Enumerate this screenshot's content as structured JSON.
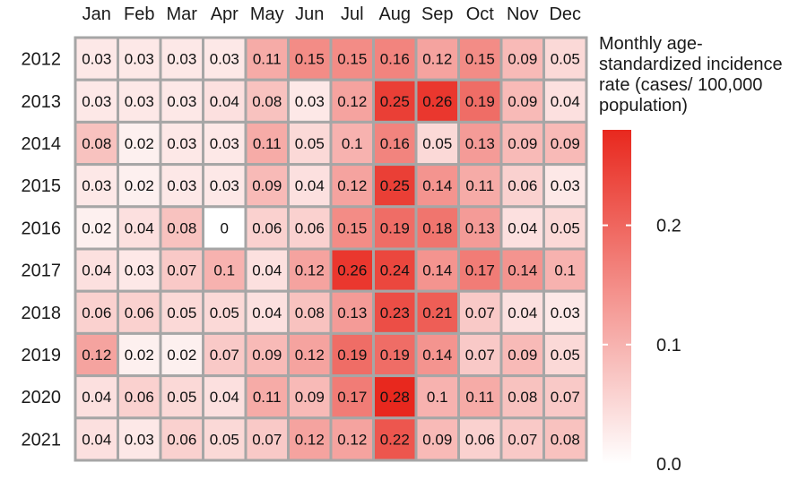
{
  "chart_data": {
    "type": "heatmap",
    "columns": [
      "Jan",
      "Feb",
      "Mar",
      "Apr",
      "May",
      "Jun",
      "Jul",
      "Aug",
      "Sep",
      "Oct",
      "Nov",
      "Dec"
    ],
    "rows": [
      "2012",
      "2013",
      "2014",
      "2015",
      "2016",
      "2017",
      "2018",
      "2019",
      "2020",
      "2021"
    ],
    "values": [
      [
        0.03,
        0.03,
        0.03,
        0.03,
        0.11,
        0.15,
        0.15,
        0.16,
        0.12,
        0.15,
        0.09,
        0.05
      ],
      [
        0.03,
        0.03,
        0.03,
        0.04,
        0.08,
        0.03,
        0.12,
        0.25,
        0.26,
        0.19,
        0.09,
        0.04
      ],
      [
        0.08,
        0.02,
        0.03,
        0.03,
        0.11,
        0.05,
        0.1,
        0.16,
        0.05,
        0.13,
        0.09,
        0.09
      ],
      [
        0.03,
        0.02,
        0.03,
        0.03,
        0.09,
        0.04,
        0.12,
        0.25,
        0.14,
        0.11,
        0.06,
        0.03
      ],
      [
        0.02,
        0.04,
        0.08,
        0,
        0.06,
        0.06,
        0.15,
        0.19,
        0.18,
        0.13,
        0.04,
        0.05
      ],
      [
        0.04,
        0.03,
        0.07,
        0.1,
        0.04,
        0.12,
        0.26,
        0.24,
        0.14,
        0.17,
        0.14,
        0.1
      ],
      [
        0.06,
        0.06,
        0.05,
        0.05,
        0.04,
        0.08,
        0.13,
        0.23,
        0.21,
        0.07,
        0.04,
        0.03
      ],
      [
        0.12,
        0.02,
        0.02,
        0.07,
        0.09,
        0.12,
        0.19,
        0.19,
        0.14,
        0.07,
        0.09,
        0.05
      ],
      [
        0.04,
        0.06,
        0.05,
        0.04,
        0.11,
        0.09,
        0.17,
        0.28,
        0.1,
        0.11,
        0.08,
        0.07
      ],
      [
        0.04,
        0.03,
        0.06,
        0.05,
        0.07,
        0.12,
        0.12,
        0.22,
        0.09,
        0.06,
        0.07,
        0.08
      ]
    ],
    "color_scale": {
      "min": 0,
      "max": 0.28,
      "low_color": "#ffffff",
      "high_color": "#e8281e"
    },
    "legend": {
      "title": "Monthly age-standardized incidence rate (cases/ 100,000 population)",
      "ticks": [
        0.0,
        0.1,
        0.2
      ],
      "tick_labels": [
        "0.0",
        "0.1",
        "0.2"
      ],
      "placement": "right"
    },
    "grid_color": "#a6a6a6"
  }
}
